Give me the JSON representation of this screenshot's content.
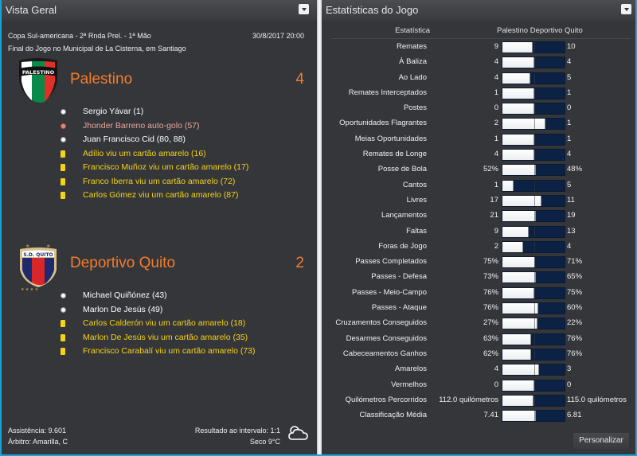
{
  "left_panel": {
    "title": "Vista Geral",
    "match": {
      "competition": "Copa Sul-americana - 2ª Rnda Prel. - 1ª Mão",
      "datetime": "30/8/2017 20:00",
      "venue": "Final do Jogo no Municipal de La Cisterna, em Santiago"
    },
    "home": {
      "name": "Palestino",
      "score": "4",
      "crest_text": "PALESTINO",
      "events": [
        {
          "type": "goal",
          "text": "Sergio Yávar (1)"
        },
        {
          "type": "own-goal",
          "text": "Jhonder Barreno auto-golo (57)"
        },
        {
          "type": "goal",
          "text": "Juan Francisco Cid (80, 88)"
        },
        {
          "type": "yellow",
          "text": "Adílio viu um cartão amarelo (16)"
        },
        {
          "type": "yellow",
          "text": "Francisco Muñoz viu um cartão amarelo (17)"
        },
        {
          "type": "yellow",
          "text": "Franco Iberra viu um cartão amarelo (72)"
        },
        {
          "type": "yellow",
          "text": "Carlos Gómez viu um cartão amarelo (87)"
        }
      ]
    },
    "away": {
      "name": "Deportivo Quito",
      "score": "2",
      "crest_text": "S.D. QUITO",
      "events": [
        {
          "type": "goal",
          "text": "Michael Quiñónez (43)"
        },
        {
          "type": "goal",
          "text": "Marlon De Jesús (49)"
        },
        {
          "type": "yellow",
          "text": "Carlos Calderón viu um cartão amarelo (18)"
        },
        {
          "type": "yellow",
          "text": "Marlon De Jesús viu um cartão amarelo (35)"
        },
        {
          "type": "yellow",
          "text": "Francisco Carabalí viu um cartão amarelo (73)"
        }
      ]
    },
    "footer": {
      "attendance": "Assistência: 9.601",
      "referee": "Árbitro: Amarilla, C",
      "half_time": "Resultado ao intervalo: 1:1",
      "weather": "Seco 9°C",
      "weather_icon": "partly-cloudy-icon"
    }
  },
  "right_panel": {
    "title": "Estatísticas do Jogo",
    "header": {
      "label": "Estatística",
      "teams": "Palestino Deportivo Quito"
    },
    "stats": [
      {
        "label": "Remates",
        "home": "9",
        "away": "10",
        "home_share": 47
      },
      {
        "label": "À Baliza",
        "home": "4",
        "away": "4",
        "home_share": 50
      },
      {
        "label": "Ao Lado",
        "home": "4",
        "away": "5",
        "home_share": 44
      },
      {
        "label": "Remates Interceptados",
        "home": "1",
        "away": "1",
        "home_share": 50
      },
      {
        "label": "Postes",
        "home": "0",
        "away": "0",
        "home_share": 50
      },
      {
        "label": "Oportunidades Flagrantes",
        "home": "2",
        "away": "1",
        "home_share": 67
      },
      {
        "label": "Meias Oportunidades",
        "home": "1",
        "away": "1",
        "home_share": 50
      },
      {
        "label": "Remates de Longe",
        "home": "4",
        "away": "4",
        "home_share": 50
      },
      {
        "label": "Posse de Bola",
        "home": "52%",
        "away": "48%",
        "home_share": 52
      },
      {
        "label": "Cantos",
        "home": "1",
        "away": "5",
        "home_share": 17
      },
      {
        "label": "Livres",
        "home": "17",
        "away": "11",
        "home_share": 61
      },
      {
        "label": "Lançamentos",
        "home": "21",
        "away": "19",
        "home_share": 52
      },
      {
        "label": "Faltas",
        "home": "9",
        "away": "13",
        "home_share": 41
      },
      {
        "label": "Foras de Jogo",
        "home": "2",
        "away": "4",
        "home_share": 33
      },
      {
        "label": "Passes Completados",
        "home": "75%",
        "away": "71%",
        "home_share": 51
      },
      {
        "label": "Passes - Defesa",
        "home": "73%",
        "away": "65%",
        "home_share": 53
      },
      {
        "label": "Passes - Meio-Campo",
        "home": "76%",
        "away": "75%",
        "home_share": 50
      },
      {
        "label": "Passes - Ataque",
        "home": "76%",
        "away": "60%",
        "home_share": 56
      },
      {
        "label": "Cruzamentos Conseguidos",
        "home": "27%",
        "away": "22%",
        "home_share": 55
      },
      {
        "label": "Desarmes Conseguidos",
        "home": "63%",
        "away": "76%",
        "home_share": 45
      },
      {
        "label": "Cabeceamentos Ganhos",
        "home": "62%",
        "away": "76%",
        "home_share": 45
      },
      {
        "label": "Amarelos",
        "home": "4",
        "away": "3",
        "home_share": 57
      },
      {
        "label": "Vermelhos",
        "home": "0",
        "away": "0",
        "home_share": 50
      },
      {
        "label": "Quilómetros Percorridos",
        "home": "112.0 quilómetros",
        "away": "115.0 quilómetros",
        "home_share": 49
      },
      {
        "label": "Classificação Média",
        "home": "7.41",
        "away": "6.81",
        "home_share": 52
      }
    ],
    "personalize_label": "Personalizar"
  },
  "colors": {
    "panel_bg": "#35363a",
    "accent_orange": "#f47c2a",
    "yellow_card": "#f5d317",
    "away_bar": "#0b2245",
    "frame": "#1aa3d9"
  }
}
